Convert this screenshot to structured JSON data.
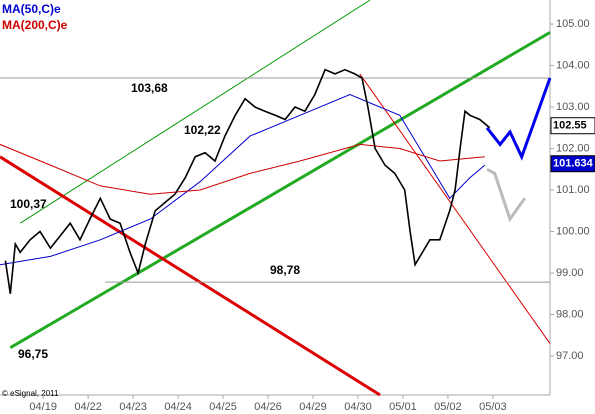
{
  "chart_data": {
    "type": "line",
    "legend": [
      {
        "name": "MA(50,C)e",
        "color": "#0000cc"
      },
      {
        "name": "MA(200,C)e",
        "color": "#cc0000"
      }
    ],
    "source": "© eSignal, 2011",
    "xlim": [
      -0.96,
      11.27
    ],
    "ylim": [
      96.06,
      105.58
    ],
    "xticks": [
      {
        "value": 0,
        "label": "04/19"
      },
      {
        "value": 1,
        "label": "04/22"
      },
      {
        "value": 2,
        "label": "04/23"
      },
      {
        "value": 3,
        "label": "04/24"
      },
      {
        "value": 4,
        "label": "04/25"
      },
      {
        "value": 5,
        "label": "04/26"
      },
      {
        "value": 6,
        "label": "04/29"
      },
      {
        "value": 7,
        "label": "04/30"
      },
      {
        "value": 8,
        "label": "05/01"
      },
      {
        "value": 9,
        "label": "05/02"
      },
      {
        "value": 10,
        "label": "05/03"
      }
    ],
    "yticks": [
      {
        "value": 97,
        "label": "97.00"
      },
      {
        "value": 98,
        "label": "98.00"
      },
      {
        "value": 99,
        "label": "99.00"
      },
      {
        "value": 100,
        "label": "100.00"
      },
      {
        "value": 101,
        "label": "101.00"
      },
      {
        "value": 102,
        "label": "102.00"
      },
      {
        "value": 103,
        "label": "103.00"
      },
      {
        "value": 104,
        "label": "104.00"
      },
      {
        "value": 105,
        "label": "105.00"
      }
    ],
    "price": {
      "color": "#000000",
      "x": [
        -0.84,
        -0.73,
        -0.62,
        -0.51,
        -0.29,
        -0.07,
        0.16,
        0.38,
        0.6,
        0.82,
        1.04,
        1.27,
        1.49,
        1.71,
        1.93,
        2.11,
        2.27,
        2.49,
        2.71,
        2.93,
        3.16,
        3.38,
        3.6,
        3.82,
        4.04,
        4.27,
        4.49,
        4.71,
        4.93,
        5.16,
        5.38,
        5.6,
        5.82,
        6.04,
        6.27,
        6.49,
        6.71,
        6.93,
        7.09,
        7.22,
        7.38,
        7.6,
        7.82,
        8.04,
        8.16,
        8.27,
        8.38,
        8.6,
        8.82,
        9.04,
        9.16,
        9.27,
        9.38,
        9.49,
        9.71,
        9.93
      ],
      "values": [
        99.3,
        98.5,
        99.7,
        99.5,
        99.8,
        100.0,
        99.6,
        99.9,
        100.2,
        99.8,
        100.3,
        100.8,
        100.3,
        100.2,
        99.5,
        99.0,
        99.7,
        100.5,
        100.7,
        100.9,
        101.3,
        101.8,
        101.9,
        101.7,
        102.3,
        102.8,
        103.2,
        103.0,
        102.9,
        102.8,
        102.7,
        103.0,
        102.9,
        103.3,
        103.9,
        103.8,
        103.9,
        103.8,
        103.7,
        103.0,
        102.0,
        101.6,
        101.4,
        101.0,
        100.0,
        99.2,
        99.4,
        99.8,
        99.8,
        100.5,
        101.0,
        102.0,
        102.9,
        102.8,
        102.7,
        102.5
      ]
    },
    "series": [
      {
        "name": "MA(50,C)e",
        "color": "#0000cc",
        "x": [
          -0.96,
          0.16,
          1.27,
          2.38,
          3.49,
          4.6,
          5.71,
          6.82,
          7.93,
          8.6,
          9.04,
          9.49,
          9.82
        ],
        "values": [
          99.2,
          99.4,
          99.8,
          100.3,
          101.2,
          102.3,
          102.8,
          103.3,
          102.8,
          101.6,
          100.8,
          101.3,
          101.6
        ]
      },
      {
        "name": "MA(200,C)e",
        "color": "#cc0000",
        "x": [
          -0.96,
          0.16,
          1.27,
          2.38,
          3.49,
          4.6,
          5.71,
          7.04,
          7.93,
          8.82,
          9.82
        ],
        "values": [
          102.1,
          101.6,
          101.1,
          100.9,
          101.0,
          101.4,
          101.7,
          102.1,
          102.0,
          101.7,
          101.8
        ]
      }
    ],
    "lines": [
      {
        "color": "#009900",
        "width": 1,
        "x": [
          -0.51,
          7.27
        ],
        "values": [
          100.2,
          105.58
        ]
      },
      {
        "color": "#22aa22",
        "width": 3,
        "x": [
          -0.73,
          11.27
        ],
        "values": [
          97.2,
          104.8
        ]
      },
      {
        "color": "#dd0000",
        "width": 3,
        "x": [
          -0.96,
          7.49
        ],
        "values": [
          101.8,
          96.06
        ]
      },
      {
        "color": "#dd0000",
        "width": 1,
        "x": [
          7.04,
          11.27
        ],
        "values": [
          103.8,
          97.3
        ]
      },
      {
        "color": "#999999",
        "width": 1,
        "x": [
          -0.96,
          11.27
        ],
        "values": [
          103.7,
          103.7
        ]
      },
      {
        "color": "#999999",
        "width": 1,
        "x": [
          1.38,
          11.27
        ],
        "values": [
          98.78,
          98.78
        ]
      },
      {
        "color": "#0000ee",
        "width": 3,
        "x": [
          9.87,
          10.16,
          10.38,
          10.64,
          11.27
        ],
        "values": [
          102.5,
          102.1,
          102.4,
          101.8,
          103.7
        ]
      },
      {
        "color": "#bbbbbb",
        "width": 3,
        "x": [
          9.87,
          10.04,
          10.38,
          10.71
        ],
        "values": [
          101.5,
          101.4,
          100.3,
          100.8
        ]
      }
    ],
    "annotations": [
      "103,68",
      "102,22",
      "100,37",
      "98,78",
      "96,75"
    ],
    "last_values": [
      {
        "value": 102.55,
        "label": "102.55",
        "color": "#ffffff",
        "text_color": "#000000"
      },
      {
        "value": 101.634,
        "label": "101.634",
        "color": "#0000cc",
        "text_color": "#ffffff"
      }
    ]
  }
}
